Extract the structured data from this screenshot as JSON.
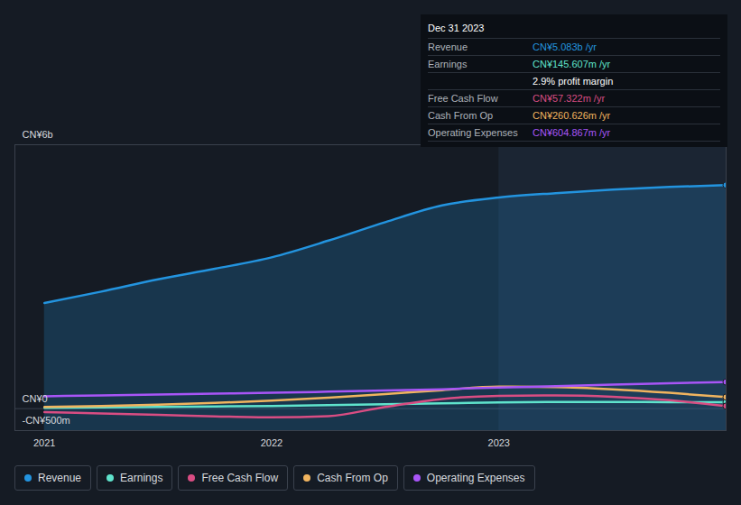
{
  "chart_data": {
    "type": "line",
    "x": [
      2021,
      2021.25,
      2021.5,
      2021.75,
      2022,
      2022.25,
      2022.5,
      2022.75,
      2023,
      2023.25,
      2023.5,
      2023.75,
      2024
    ],
    "xlim": [
      2020.87,
      2024
    ],
    "xticks": [
      2021,
      2022,
      2023
    ],
    "ylim": [
      -500,
      6000
    ],
    "yticks": [
      {
        "value": -500,
        "label": "-CN¥500m"
      },
      {
        "value": 0,
        "label": "CN¥0"
      },
      {
        "value": 6000,
        "label": "CN¥6b"
      }
    ],
    "grid": true,
    "legend": "bottom",
    "series": [
      {
        "name": "Revenue",
        "color": "#2394df",
        "type": "area",
        "values": [
          2400,
          2660,
          2940,
          3180,
          3440,
          3820,
          4240,
          4620,
          4800,
          4900,
          4980,
          5040,
          5083
        ]
      },
      {
        "name": "Earnings",
        "color": "#5fe3cc",
        "type": "line",
        "values": [
          20,
          30,
          40,
          50,
          60,
          80,
          100,
          120,
          140,
          150,
          150,
          148,
          145.607
        ]
      },
      {
        "name": "Free Cash Flow",
        "color": "#d94d83",
        "type": "line",
        "values": [
          -80,
          -110,
          -140,
          -175,
          -200,
          -170,
          40,
          220,
          290,
          300,
          270,
          190,
          57.322
        ]
      },
      {
        "name": "Cash From Op",
        "color": "#f0b45f",
        "type": "line",
        "values": [
          40,
          60,
          90,
          130,
          180,
          250,
          330,
          420,
          500,
          490,
          440,
          360,
          260.626
        ]
      },
      {
        "name": "Operating Expenses",
        "color": "#a855f7",
        "type": "line",
        "values": [
          280,
          300,
          320,
          340,
          360,
          385,
          410,
          440,
          480,
          510,
          545,
          575,
          604.867
        ]
      }
    ],
    "annotation": {
      "title": "Dec 31 2023",
      "rows": [
        {
          "label": "Revenue",
          "value": "CN¥5.083b /yr"
        },
        {
          "label": "Earnings",
          "value": "CN¥145.607m /yr"
        },
        {
          "value": "2.9% profit margin"
        },
        {
          "label": "Free Cash Flow",
          "value": "CN¥57.322m /yr"
        },
        {
          "label": "Cash From Op",
          "value": "CN¥260.626m /yr"
        },
        {
          "label": "Operating Expenses",
          "value": "CN¥604.867m /yr"
        }
      ]
    }
  }
}
